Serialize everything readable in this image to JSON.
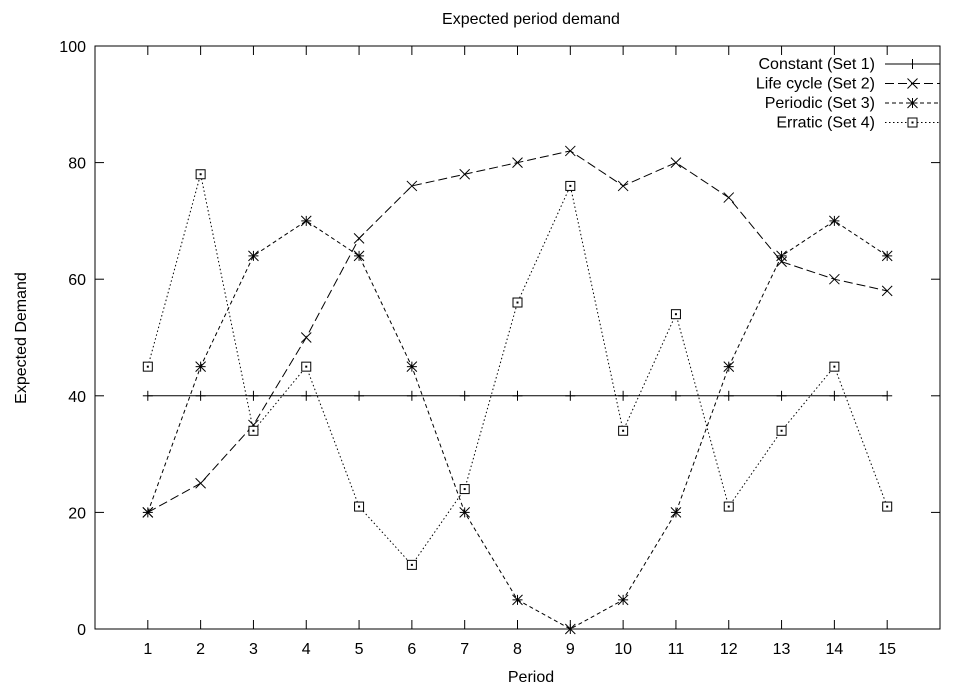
{
  "chart_data": {
    "type": "line",
    "title": "Expected period demand",
    "xlabel": "Period",
    "ylabel": "Expected Demand",
    "x": [
      1,
      2,
      3,
      4,
      5,
      6,
      7,
      8,
      9,
      10,
      11,
      12,
      13,
      14,
      15
    ],
    "xlim": [
      0,
      16
    ],
    "ylim": [
      0,
      100
    ],
    "yticks": [
      0,
      20,
      40,
      60,
      80,
      100
    ],
    "xticks": [
      1,
      2,
      3,
      4,
      5,
      6,
      7,
      8,
      9,
      10,
      11,
      12,
      13,
      14,
      15
    ],
    "grid": false,
    "legend_position": "top-right",
    "series": [
      {
        "name": "Constant (Set 1)",
        "marker": "plus",
        "line": "solid",
        "values": [
          40,
          40,
          40,
          40,
          40,
          40,
          40,
          40,
          40,
          40,
          40,
          40,
          40,
          40,
          40
        ]
      },
      {
        "name": "Life cycle (Set 2)",
        "marker": "cross",
        "line": "dashed",
        "values": [
          20,
          25,
          35,
          50,
          67,
          76,
          78,
          80,
          82,
          76,
          80,
          74,
          63,
          60,
          58
        ]
      },
      {
        "name": "Periodic (Set 3)",
        "marker": "asterisk",
        "line": "short-dashed",
        "values": [
          20,
          45,
          64,
          70,
          64,
          45,
          20,
          5,
          0,
          5,
          20,
          45,
          64,
          70,
          64
        ]
      },
      {
        "name": "Erratic (Set 4)",
        "marker": "square",
        "line": "dotted",
        "values": [
          45,
          78,
          34,
          45,
          21,
          11,
          24,
          56,
          76,
          34,
          54,
          21,
          34,
          45,
          21
        ]
      }
    ]
  }
}
